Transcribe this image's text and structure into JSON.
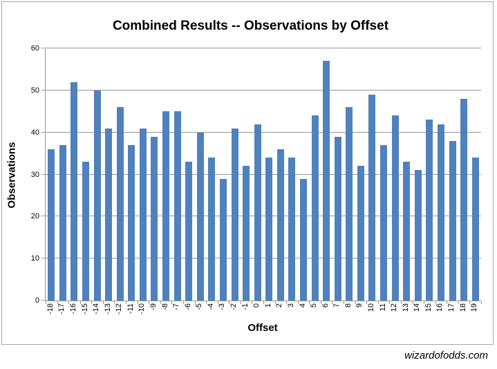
{
  "watermark": "wizardofodds.com",
  "chart_data": {
    "type": "bar",
    "title": "Combined Results -- Observations by Offset",
    "xlabel": "Offset",
    "ylabel": "Observations",
    "categories": [
      "-18",
      "-17",
      "-16",
      "-15",
      "-14",
      "-13",
      "-12",
      "-11",
      "-10",
      "-9",
      "-8",
      "-7",
      "-6",
      "-5",
      "-4",
      "-3",
      "-2",
      "-1",
      "0",
      "1",
      "2",
      "3",
      "4",
      "5",
      "6",
      "7",
      "8",
      "9",
      "10",
      "11",
      "12",
      "13",
      "14",
      "15",
      "16",
      "17",
      "18",
      "19"
    ],
    "values": [
      36,
      37,
      52,
      33,
      50,
      41,
      46,
      37,
      41,
      39,
      45,
      45,
      33,
      40,
      34,
      29,
      41,
      32,
      42,
      34,
      36,
      34,
      29,
      44,
      57,
      39,
      46,
      32,
      49,
      37,
      44,
      33,
      31,
      43,
      42,
      38,
      48,
      34
    ],
    "ylim": [
      0,
      60
    ],
    "yticks": [
      0,
      10,
      20,
      30,
      40,
      50,
      60
    ],
    "grid": true,
    "legend_position": "none",
    "bar_color": "#4f81bd",
    "gridline_color": "#969696",
    "frame_border_color": "#a6a6a6"
  }
}
